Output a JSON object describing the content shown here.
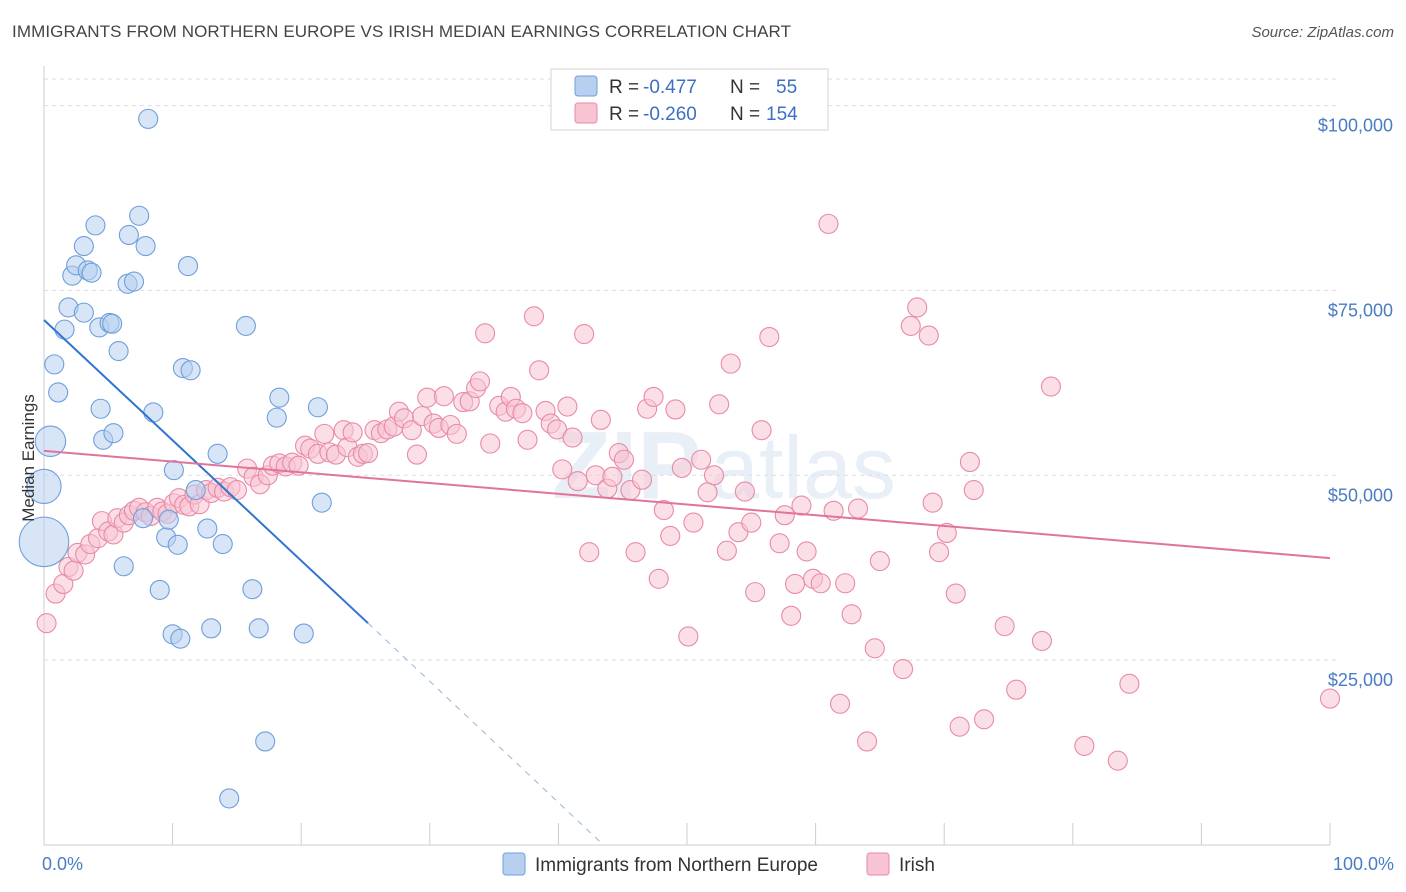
{
  "title": "IMMIGRANTS FROM NORTHERN EUROPE VS IRISH MEDIAN EARNINGS CORRELATION CHART",
  "source": "Source: ZipAtlas.com",
  "watermark": {
    "zip": "ZIP",
    "atlas": "atlas"
  },
  "colors": {
    "blue_fill": "#b7d0f0",
    "blue_stroke": "#6f9fdc",
    "blue_line": "#2f74d0",
    "pink_fill": "#f8c4d4",
    "pink_stroke": "#e88aa8",
    "pink_line": "#e2739a",
    "grid": "#dddddd",
    "axis_label": "#4a7cc4"
  },
  "legend": {
    "rows": [
      {
        "r_label": "R =",
        "r_value": "-0.477",
        "n_label": "N =",
        "n_value": "55"
      },
      {
        "r_label": "R =",
        "r_value": "-0.260",
        "n_label": "N =",
        "n_value": "154"
      }
    ]
  },
  "chart_data": {
    "type": "scatter",
    "xlabel": "",
    "ylabel": "Median Earnings",
    "xlim": [
      0,
      100
    ],
    "ylim": [
      0,
      104000
    ],
    "x_tick_labels": [
      {
        "value": 0,
        "label": "0.0%"
      },
      {
        "value": 100,
        "label": "100.0%"
      }
    ],
    "y_tick_labels": [
      {
        "value": 25000,
        "label": "$25,000"
      },
      {
        "value": 50000,
        "label": "$50,000"
      },
      {
        "value": 75000,
        "label": "$75,000"
      },
      {
        "value": 100000,
        "label": "$100,000"
      }
    ],
    "series": [
      {
        "name": "Immigrants from Northern Europe",
        "R": -0.477,
        "N": 55,
        "trend": {
          "x0": 0,
          "y0": 71000,
          "x1": 25.2,
          "y1": 30000,
          "dash_x1": 43.2,
          "dash_y1": 500
        },
        "points": [
          [
            0.0,
            41000,
            2.6
          ],
          [
            0.0,
            48500,
            1.8
          ],
          [
            0.5,
            54600,
            1.6
          ],
          [
            0.8,
            65000,
            1
          ],
          [
            1.1,
            61200,
            1
          ],
          [
            1.6,
            69700,
            1
          ],
          [
            1.9,
            72700,
            1
          ],
          [
            2.2,
            77000,
            1
          ],
          [
            2.5,
            78400,
            1
          ],
          [
            3.1,
            72000,
            1
          ],
          [
            3.1,
            81000,
            1
          ],
          [
            3.4,
            77700,
            1
          ],
          [
            3.7,
            77400,
            1
          ],
          [
            4.0,
            83800,
            1
          ],
          [
            4.3,
            70000,
            1
          ],
          [
            4.4,
            59000,
            1
          ],
          [
            4.6,
            54800,
            1
          ],
          [
            5.1,
            70600,
            1
          ],
          [
            5.3,
            70500,
            1
          ],
          [
            5.4,
            55700,
            1
          ],
          [
            5.8,
            66800,
            1
          ],
          [
            6.2,
            37700,
            1
          ],
          [
            6.5,
            75900,
            1
          ],
          [
            6.6,
            82500,
            1
          ],
          [
            7.0,
            76200,
            1
          ],
          [
            7.4,
            85100,
            1
          ],
          [
            7.7,
            44200,
            1
          ],
          [
            7.9,
            81000,
            1
          ],
          [
            8.1,
            98200,
            1
          ],
          [
            8.5,
            58500,
            1
          ],
          [
            9.0,
            34500,
            1
          ],
          [
            9.5,
            41600,
            1
          ],
          [
            9.7,
            44000,
            1
          ],
          [
            10.0,
            28500,
            1
          ],
          [
            10.1,
            50700,
            1
          ],
          [
            10.4,
            40600,
            1
          ],
          [
            10.6,
            27900,
            1
          ],
          [
            10.8,
            64500,
            1
          ],
          [
            11.2,
            78300,
            1
          ],
          [
            11.4,
            64200,
            1
          ],
          [
            11.8,
            48000,
            1
          ],
          [
            12.7,
            42800,
            1
          ],
          [
            13.0,
            29300,
            1
          ],
          [
            13.5,
            52900,
            1
          ],
          [
            13.9,
            40700,
            1
          ],
          [
            14.4,
            6300,
            1
          ],
          [
            15.7,
            70200,
            1
          ],
          [
            16.2,
            34600,
            1
          ],
          [
            16.7,
            29300,
            1
          ],
          [
            17.2,
            14000,
            1
          ],
          [
            18.1,
            57800,
            1
          ],
          [
            18.3,
            60500,
            1
          ],
          [
            20.2,
            28600,
            1
          ],
          [
            21.3,
            59200,
            1
          ],
          [
            21.6,
            46300,
            1
          ]
        ]
      },
      {
        "name": "Irish",
        "R": -0.26,
        "N": 154,
        "trend": {
          "x0": 0,
          "y0": 53300,
          "x1": 100,
          "y1": 38800
        },
        "points": [
          [
            0.2,
            30000,
            1
          ],
          [
            0.9,
            34000,
            1
          ],
          [
            1.5,
            35300,
            1
          ],
          [
            1.9,
            37600,
            1
          ],
          [
            2.3,
            37100,
            1
          ],
          [
            2.6,
            39500,
            1
          ],
          [
            3.2,
            39300,
            1
          ],
          [
            3.6,
            40700,
            1
          ],
          [
            4.2,
            41500,
            1
          ],
          [
            4.5,
            43800,
            1
          ],
          [
            5.0,
            42400,
            1
          ],
          [
            5.4,
            42000,
            1
          ],
          [
            5.7,
            44200,
            1
          ],
          [
            6.2,
            43600,
            1
          ],
          [
            6.6,
            44600,
            1
          ],
          [
            7.0,
            45200,
            1
          ],
          [
            7.4,
            45600,
            1
          ],
          [
            7.9,
            45000,
            1
          ],
          [
            8.3,
            44500,
            1
          ],
          [
            8.8,
            45600,
            1
          ],
          [
            9.2,
            45100,
            1
          ],
          [
            9.6,
            44800,
            1
          ],
          [
            10.1,
            46200,
            1
          ],
          [
            10.5,
            46900,
            1
          ],
          [
            10.9,
            46000,
            1
          ],
          [
            11.3,
            45800,
            1
          ],
          [
            11.7,
            47400,
            1
          ],
          [
            12.1,
            46100,
            1
          ],
          [
            12.6,
            48000,
            1
          ],
          [
            13.0,
            47600,
            1
          ],
          [
            13.5,
            48300,
            1
          ],
          [
            14.0,
            47800,
            1
          ],
          [
            14.5,
            48400,
            1
          ],
          [
            15.0,
            48000,
            1
          ],
          [
            15.8,
            50900,
            1
          ],
          [
            16.3,
            49800,
            1
          ],
          [
            16.8,
            48800,
            1
          ],
          [
            17.4,
            50000,
            1
          ],
          [
            17.8,
            51300,
            1
          ],
          [
            18.3,
            51600,
            1
          ],
          [
            18.8,
            51200,
            1
          ],
          [
            19.3,
            51700,
            1
          ],
          [
            19.8,
            51300,
            1
          ],
          [
            20.3,
            54000,
            1
          ],
          [
            20.7,
            53600,
            1
          ],
          [
            21.3,
            52900,
            1
          ],
          [
            21.8,
            55600,
            1
          ],
          [
            22.2,
            53100,
            1
          ],
          [
            22.7,
            52800,
            1
          ],
          [
            23.3,
            56100,
            1
          ],
          [
            23.6,
            53800,
            1
          ],
          [
            24.0,
            55800,
            1
          ],
          [
            24.4,
            52500,
            1
          ],
          [
            24.8,
            52900,
            1
          ],
          [
            25.2,
            53000,
            1
          ],
          [
            25.7,
            56100,
            1
          ],
          [
            26.2,
            55700,
            1
          ],
          [
            26.7,
            56200,
            1
          ],
          [
            27.2,
            56600,
            1
          ],
          [
            27.6,
            58600,
            1
          ],
          [
            28.0,
            57700,
            1
          ],
          [
            28.6,
            56100,
            1
          ],
          [
            29.0,
            52800,
            1
          ],
          [
            29.4,
            58000,
            1
          ],
          [
            29.8,
            60500,
            1
          ],
          [
            30.3,
            57000,
            1
          ],
          [
            30.7,
            56400,
            1
          ],
          [
            31.1,
            60700,
            1
          ],
          [
            31.6,
            56800,
            1
          ],
          [
            32.1,
            55600,
            1
          ],
          [
            32.6,
            59900,
            1
          ],
          [
            33.1,
            60000,
            1
          ],
          [
            33.6,
            61800,
            1
          ],
          [
            33.9,
            62700,
            1
          ],
          [
            34.3,
            69200,
            1
          ],
          [
            34.7,
            54300,
            1
          ],
          [
            35.4,
            59400,
            1
          ],
          [
            35.9,
            58600,
            1
          ],
          [
            36.3,
            60600,
            1
          ],
          [
            36.7,
            59000,
            1
          ],
          [
            37.2,
            58400,
            1
          ],
          [
            37.6,
            54800,
            1
          ],
          [
            38.1,
            71500,
            1
          ],
          [
            38.5,
            64200,
            1
          ],
          [
            39.0,
            58700,
            1
          ],
          [
            39.4,
            57000,
            1
          ],
          [
            39.9,
            56200,
            1
          ],
          [
            40.3,
            50800,
            1
          ],
          [
            40.7,
            59300,
            1
          ],
          [
            41.1,
            55100,
            1
          ],
          [
            41.5,
            49200,
            1
          ],
          [
            42.0,
            69100,
            1
          ],
          [
            42.4,
            39600,
            1
          ],
          [
            42.9,
            50000,
            1
          ],
          [
            43.3,
            57500,
            1
          ],
          [
            43.8,
            48200,
            1
          ],
          [
            44.2,
            49800,
            1
          ],
          [
            44.7,
            53000,
            1
          ],
          [
            45.1,
            52100,
            1
          ],
          [
            45.6,
            48000,
            1
          ],
          [
            46.0,
            39600,
            1
          ],
          [
            46.5,
            49400,
            1
          ],
          [
            46.9,
            59000,
            1
          ],
          [
            47.4,
            60600,
            1
          ],
          [
            47.8,
            36000,
            1
          ],
          [
            48.2,
            45300,
            1
          ],
          [
            48.7,
            41800,
            1
          ],
          [
            49.1,
            58900,
            1
          ],
          [
            49.6,
            51000,
            1
          ],
          [
            50.1,
            28200,
            1
          ],
          [
            50.5,
            43600,
            1
          ],
          [
            51.1,
            52100,
            1
          ],
          [
            51.6,
            47700,
            1
          ],
          [
            52.1,
            50000,
            1
          ],
          [
            52.5,
            59600,
            1
          ],
          [
            53.1,
            39800,
            1
          ],
          [
            53.4,
            65100,
            1
          ],
          [
            54.0,
            42300,
            1
          ],
          [
            54.5,
            47800,
            1
          ],
          [
            55.0,
            43600,
            1
          ],
          [
            55.3,
            34200,
            1
          ],
          [
            55.8,
            56100,
            1
          ],
          [
            56.4,
            68700,
            1
          ],
          [
            57.2,
            40800,
            1
          ],
          [
            57.6,
            44600,
            1
          ],
          [
            58.1,
            31000,
            1
          ],
          [
            58.4,
            35300,
            1
          ],
          [
            58.9,
            45900,
            1
          ],
          [
            59.3,
            39700,
            1
          ],
          [
            59.8,
            36000,
            1
          ],
          [
            60.4,
            35400,
            1
          ],
          [
            61.0,
            84000,
            1
          ],
          [
            61.4,
            45200,
            1
          ],
          [
            61.9,
            19100,
            1
          ],
          [
            62.3,
            35400,
            1
          ],
          [
            62.8,
            31200,
            1
          ],
          [
            63.3,
            45500,
            1
          ],
          [
            64.0,
            14000,
            1
          ],
          [
            64.6,
            26600,
            1
          ],
          [
            65.0,
            38400,
            1
          ],
          [
            66.8,
            23800,
            1
          ],
          [
            67.4,
            70200,
            1
          ],
          [
            67.9,
            72700,
            1
          ],
          [
            68.8,
            68900,
            1
          ],
          [
            69.1,
            46300,
            1
          ],
          [
            69.6,
            39600,
            1
          ],
          [
            70.2,
            42200,
            1
          ],
          [
            70.9,
            34000,
            1
          ],
          [
            71.2,
            16000,
            1
          ],
          [
            72.0,
            51800,
            1
          ],
          [
            72.3,
            48000,
            1
          ],
          [
            73.1,
            17000,
            1
          ],
          [
            74.7,
            29600,
            1
          ],
          [
            75.6,
            21000,
            1
          ],
          [
            77.6,
            27600,
            1
          ],
          [
            78.3,
            62000,
            1
          ],
          [
            80.9,
            13400,
            1
          ],
          [
            83.5,
            11400,
            1
          ],
          [
            84.4,
            21800,
            1
          ],
          [
            100.0,
            19800,
            1
          ]
        ]
      }
    ],
    "grid": true,
    "legend_position": "top-center"
  }
}
